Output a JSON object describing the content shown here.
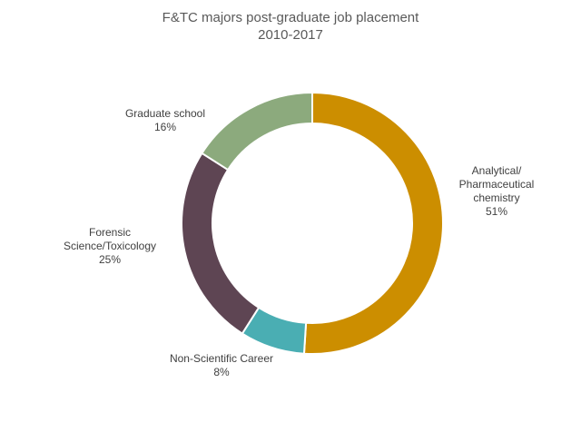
{
  "chart_data": {
    "type": "pie",
    "style": "donut",
    "title_lines": [
      "F&TC majors post-graduate job placement",
      "2010-2017"
    ],
    "slices": [
      {
        "label_lines": [
          "Analytical/",
          "Pharmaceutical",
          "chemistry"
        ],
        "value": 51,
        "value_label": "51%",
        "color": "#CC8E00"
      },
      {
        "label_lines": [
          "Non-Scientific Career"
        ],
        "value": 8,
        "value_label": "8%",
        "color": "#4AAEB3"
      },
      {
        "label_lines": [
          "Forensic",
          "Science/Toxicology"
        ],
        "value": 25,
        "value_label": "25%",
        "color": "#5E4553"
      },
      {
        "label_lines": [
          "Graduate school"
        ],
        "value": 16,
        "value_label": "16%",
        "color": "#8CAA7D"
      }
    ]
  }
}
